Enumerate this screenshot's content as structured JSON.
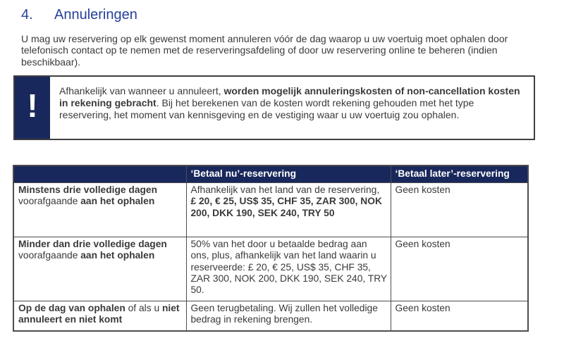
{
  "colors": {
    "heading_blue": "#26409a",
    "navy": "#19285c",
    "header_text": "#ffffff",
    "body_text": "#3a3a3a",
    "table_border": "#4d4d4d"
  },
  "heading": {
    "number": "4.",
    "title": "Annuleringen"
  },
  "intro": {
    "text": "U mag uw reservering op elk gewenst moment annuleren vóór de dag waarop u uw voertuig moet ophalen door telefonisch contact op te nemen met de reserveringsafdeling of door uw reservering online te beheren (indien beschikbaar)."
  },
  "warning": {
    "icon_glyph": "!",
    "segments": [
      {
        "t": "Afhankelijk van wanneer u annuleert, ",
        "b": false
      },
      {
        "t": "worden mogelijk annuleringskosten of non-cancellation kosten in rekening gebracht",
        "b": true
      },
      {
        "t": ". Bij het berekenen van de kosten wordt rekening gehouden met het type reservering, het moment van kennisgeving en de vestiging waar u uw voertuig zou ophalen.",
        "b": false
      }
    ]
  },
  "table": {
    "headers": [
      "",
      "‘Betaal nu’-reservering",
      "‘Betaal later’-reservering"
    ],
    "rows": [
      {
        "condition": [
          {
            "t": "Minstens drie volledige dagen ",
            "b": true
          },
          {
            "t": "voorafgaande ",
            "b": false
          },
          {
            "t": "aan het ophalen",
            "b": true
          }
        ],
        "pay_now": [
          {
            "t": "Afhankelijk van het land van de reservering, ",
            "b": false
          },
          {
            "t": "£ 20, € 25, US$ 35, CHF 35, ZAR 300, NOK 200, DKK 190, SEK 240, TRY 50",
            "b": true
          }
        ],
        "pay_later": "Geen kosten"
      },
      {
        "condition": [
          {
            "t": "Minder dan drie volledige dagen ",
            "b": true
          },
          {
            "t": "voorafgaande ",
            "b": false
          },
          {
            "t": "aan het ophalen",
            "b": true
          }
        ],
        "pay_now": [
          {
            "t": "50% van het door u betaalde bedrag aan ons, plus, afhankelijk van het land waarin u reserveerde: £ 20, € 25, US$ 35, CHF 35, ZAR 300, NOK 200, DKK 190, SEK 240, TRY 50.",
            "b": false
          }
        ],
        "pay_later": "Geen kosten"
      },
      {
        "condition": [
          {
            "t": "Op de dag van ophalen",
            "b": true
          },
          {
            "t": " of als u ",
            "b": false
          },
          {
            "t": "niet annuleert en niet komt",
            "b": true
          }
        ],
        "pay_now": [
          {
            "t": "Geen terugbetaling. Wij zullen het volledige bedrag in rekening brengen.",
            "b": false
          }
        ],
        "pay_later": "Geen kosten"
      }
    ]
  }
}
